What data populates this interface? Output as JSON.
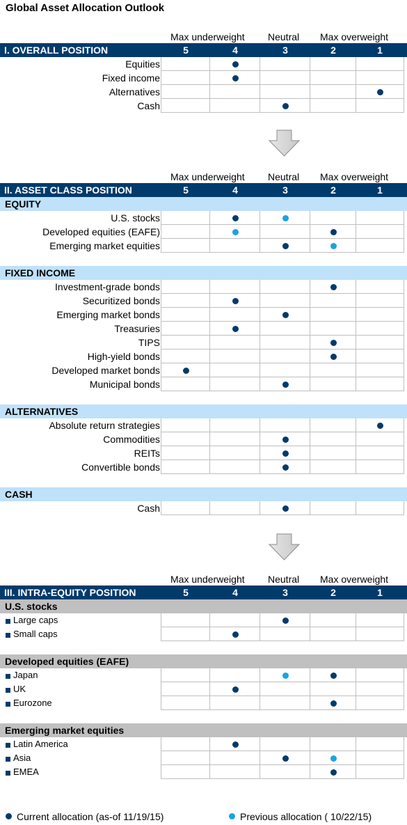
{
  "title": "Global Asset Allocation Outlook",
  "colors": {
    "current": "#003B6B",
    "previous": "#1BA3E0",
    "header_bg": "#003B6B",
    "blue_band": "#BFE1FA",
    "gray_band": "#C0C0C0"
  },
  "scale": {
    "max_underweight": "Max underweight",
    "neutral": "Neutral",
    "max_overweight": "Max overweight",
    "columns": [
      "5",
      "4",
      "3",
      "2",
      "1"
    ]
  },
  "sections": [
    {
      "title": "I. OVERALL POSITION",
      "groups": [
        {
          "name": "",
          "rows": [
            {
              "label": "Equities",
              "current": 4,
              "previous": null
            },
            {
              "label": "Fixed income",
              "current": 4,
              "previous": null
            },
            {
              "label": "Alternatives",
              "current": 1,
              "previous": null
            },
            {
              "label": "Cash",
              "current": 3,
              "previous": null
            }
          ]
        }
      ]
    },
    {
      "title": "II. ASSET CLASS POSITION",
      "groups": [
        {
          "name": "EQUITY",
          "rows": [
            {
              "label": "U.S. stocks",
              "current": 4,
              "previous": 3
            },
            {
              "label": "Developed equities (EAFE)",
              "current": 2,
              "previous": 4
            },
            {
              "label": "Emerging market equities",
              "current": 3,
              "previous": 2
            }
          ]
        },
        {
          "name": "FIXED INCOME",
          "rows": [
            {
              "label": "Investment-grade bonds",
              "current": 2,
              "previous": null
            },
            {
              "label": "Securitized bonds",
              "current": 4,
              "previous": null
            },
            {
              "label": "Emerging market bonds",
              "current": 3,
              "previous": null
            },
            {
              "label": "Treasuries",
              "current": 4,
              "previous": null
            },
            {
              "label": "TIPS",
              "current": 2,
              "previous": null
            },
            {
              "label": "High-yield bonds",
              "current": 2,
              "previous": null
            },
            {
              "label": "Developed market bonds",
              "current": 5,
              "previous": null
            },
            {
              "label": "Municipal bonds",
              "current": 3,
              "previous": null
            }
          ]
        },
        {
          "name": "ALTERNATIVES",
          "rows": [
            {
              "label": "Absolute return strategies",
              "current": 1,
              "previous": null
            },
            {
              "label": "Commodities",
              "current": 3,
              "previous": null
            },
            {
              "label": "REITs",
              "current": 3,
              "previous": null
            },
            {
              "label": "Convertible bonds",
              "current": 3,
              "previous": null
            }
          ]
        },
        {
          "name": "CASH",
          "rows": [
            {
              "label": "Cash",
              "current": 3,
              "previous": null
            }
          ]
        }
      ]
    },
    {
      "title": "III. INTRA-EQUITY POSITION",
      "groups": [
        {
          "name": "U.S. stocks",
          "rows": [
            {
              "label": "Large caps",
              "current": 3,
              "previous": null
            },
            {
              "label": "Small caps",
              "current": 4,
              "previous": null
            }
          ]
        },
        {
          "name": "Developed equities (EAFE)",
          "rows": [
            {
              "label": "Japan",
              "current": 2,
              "previous": 3
            },
            {
              "label": "UK",
              "current": 4,
              "previous": null
            },
            {
              "label": "Eurozone",
              "current": 2,
              "previous": null
            }
          ]
        },
        {
          "name": "Emerging market equities",
          "rows": [
            {
              "label": "Latin America",
              "current": 4,
              "previous": null
            },
            {
              "label": "Asia",
              "current": 3,
              "previous": 2
            },
            {
              "label": "EMEA",
              "current": 2,
              "previous": null
            }
          ]
        }
      ]
    }
  ],
  "legend": {
    "current": "Current allocation (as-of 11/19/15)",
    "previous": "Previous allocation ( 10/22/15)"
  }
}
